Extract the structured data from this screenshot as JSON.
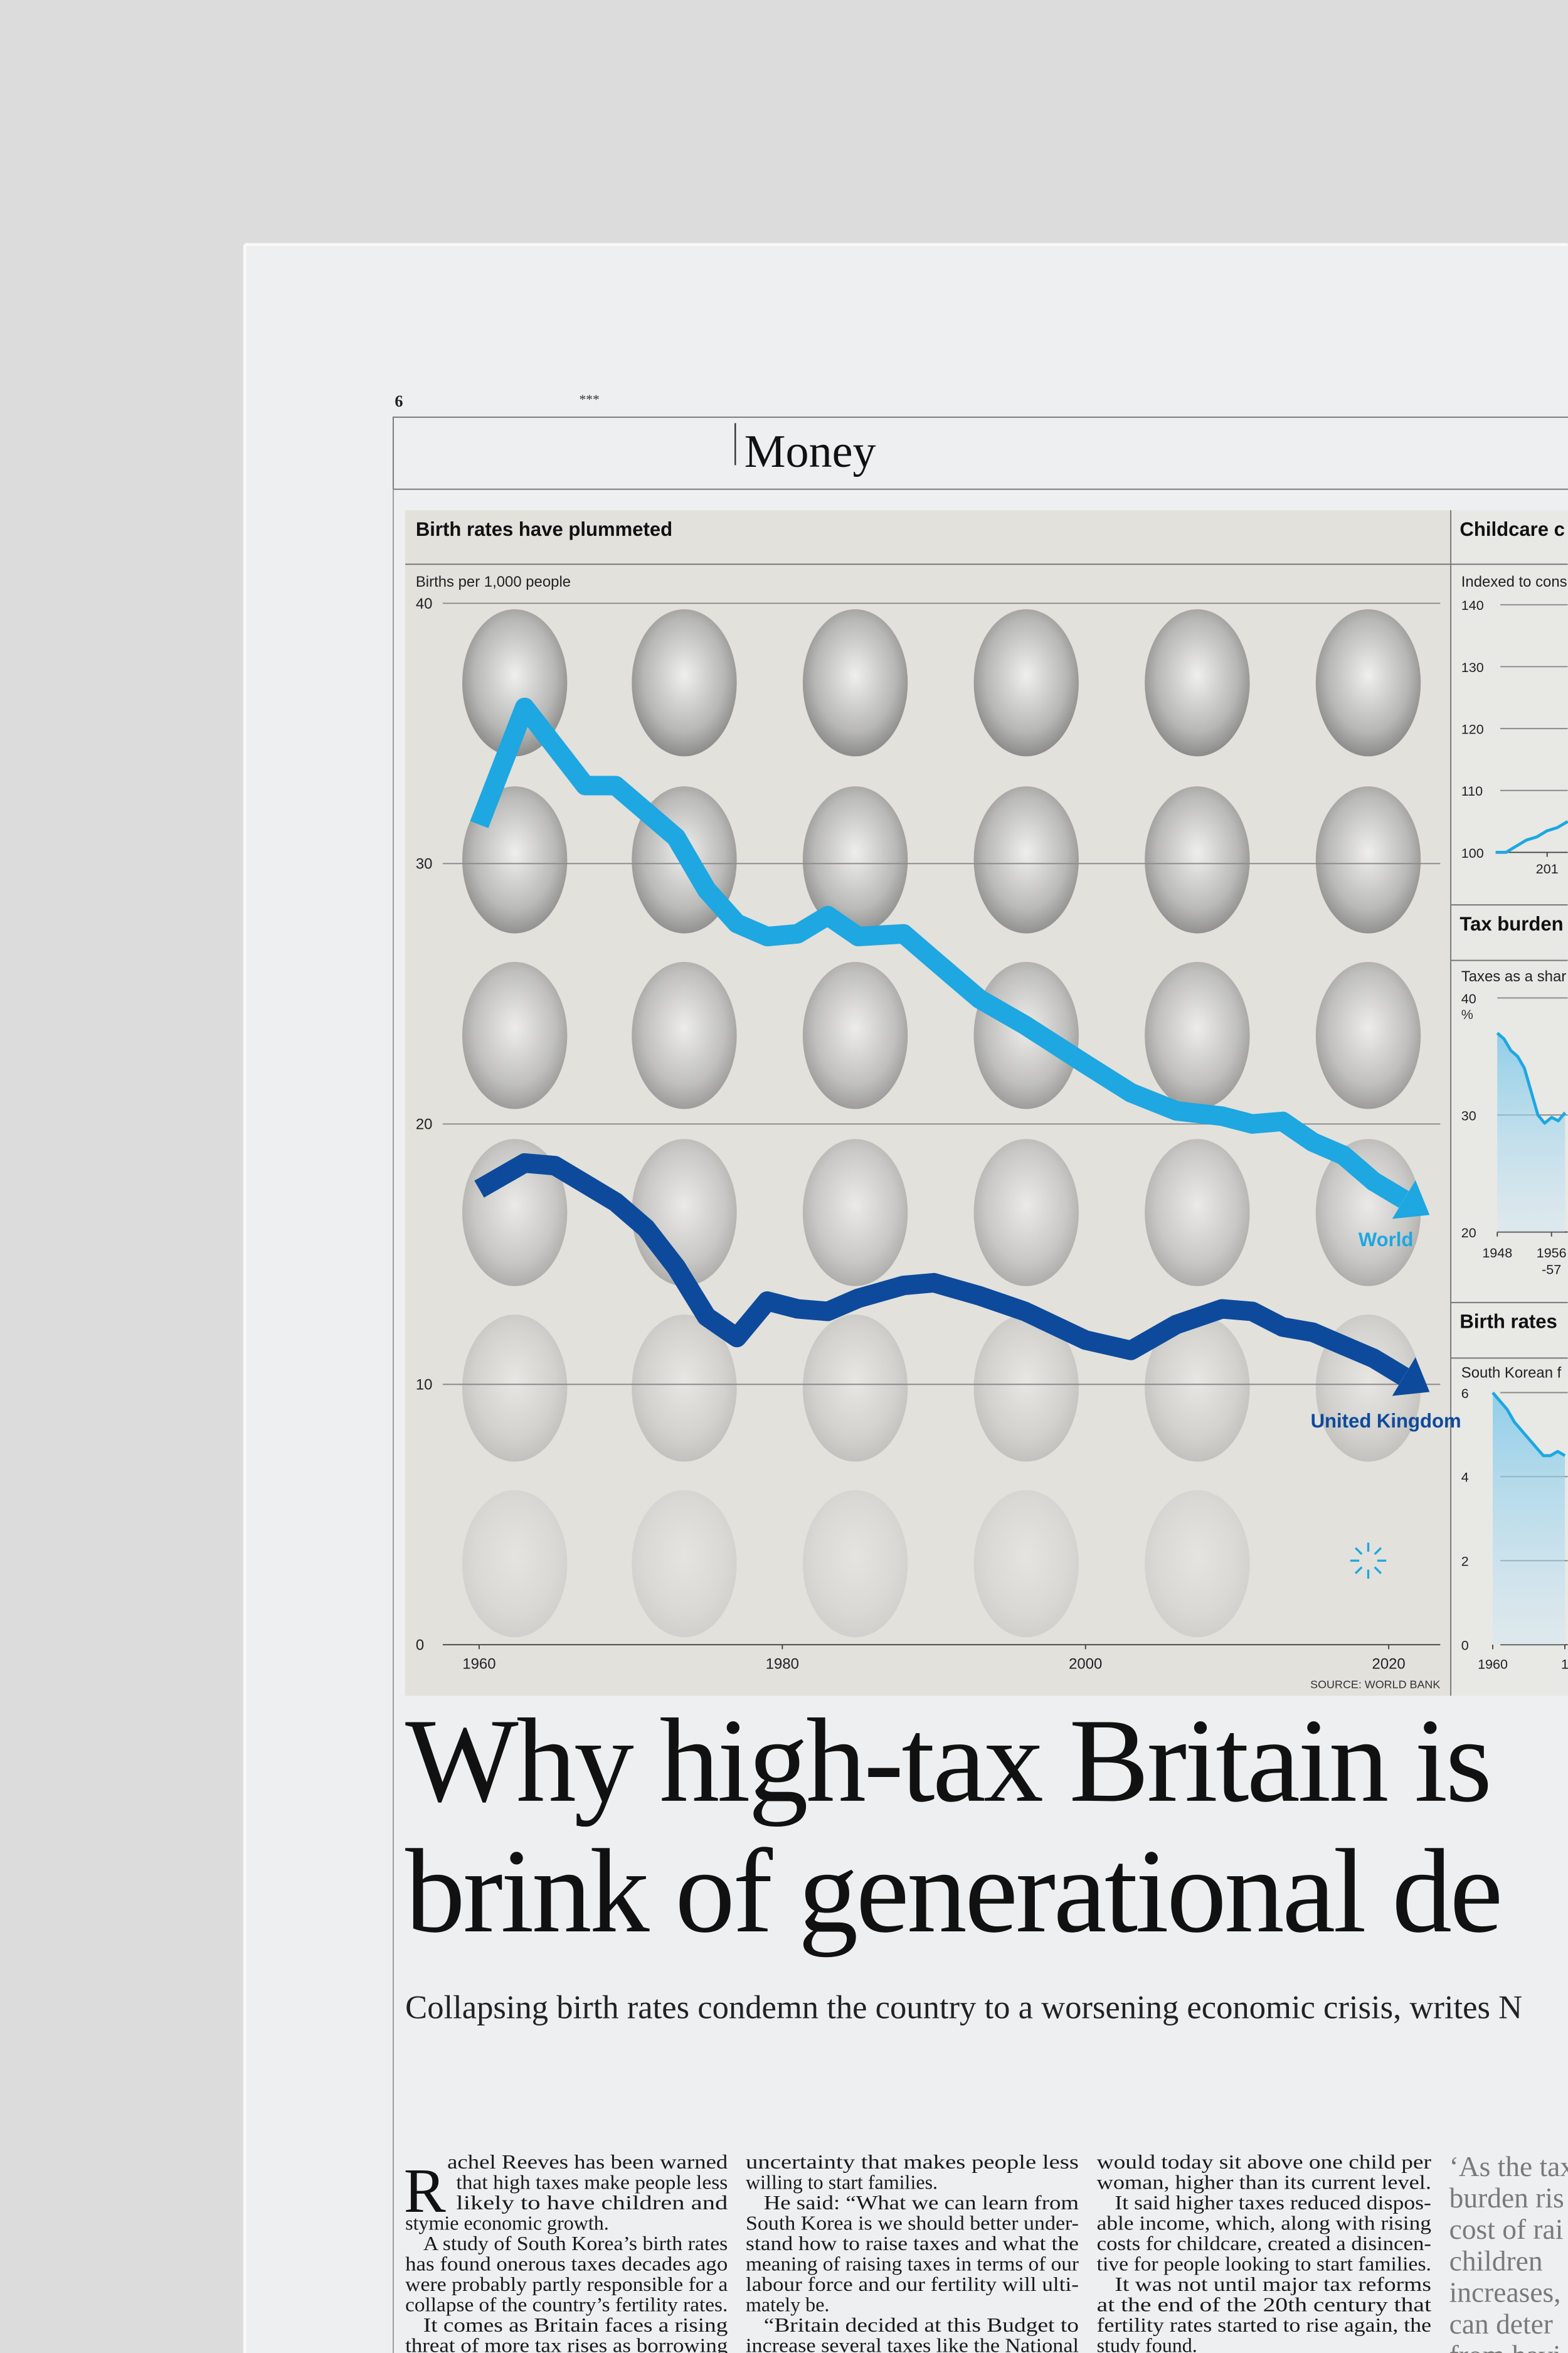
{
  "page": {
    "number": "6",
    "stars": "***",
    "section": "Money"
  },
  "chart_data": [
    {
      "type": "line",
      "title": "Birth rates have plummeted",
      "y_label": "Births per 1,000 people",
      "x": [
        1960,
        1963,
        1965,
        1967,
        1969,
        1971,
        1973,
        1975,
        1977,
        1979,
        1981,
        1983,
        1985,
        1988,
        1990,
        1993,
        1996,
        2000,
        2003,
        2006,
        2009,
        2011,
        2013,
        2015,
        2017,
        2019,
        2021
      ],
      "series": [
        {
          "name": "World",
          "color": "#1ea7e1",
          "values": [
            31.5,
            36,
            34.5,
            33,
            33,
            32,
            31,
            29,
            27.7,
            27.2,
            27.3,
            28,
            27.2,
            27.3,
            26.3,
            24.8,
            23.8,
            22.3,
            21.2,
            20.5,
            20.3,
            20,
            20.1,
            19.3,
            18.8,
            17.8,
            17.1
          ]
        },
        {
          "name": "United Kingdom",
          "color": "#0d4a9c",
          "values": [
            17.5,
            18.5,
            18.4,
            17.7,
            17,
            16,
            14.5,
            12.6,
            11.8,
            13.2,
            12.9,
            12.8,
            13.3,
            13.8,
            13.9,
            13.4,
            12.8,
            11.7,
            11.3,
            12.3,
            12.9,
            12.8,
            12.2,
            12,
            11.5,
            11,
            10.3
          ]
        }
      ],
      "xlim": [
        1957.6,
        2023.4
      ],
      "xticks": [
        1960,
        1980,
        2000,
        2020
      ],
      "ylim": [
        0,
        40
      ],
      "yticks": [
        0,
        10,
        20,
        30,
        40
      ],
      "grid": true,
      "arrows": true,
      "source": "SOURCE: WORLD BANK"
    },
    {
      "type": "line",
      "title": "Childcare c",
      "y_label": "Indexed to cons",
      "x": [
        2008.5,
        2009,
        2009.5,
        2010,
        2010.5,
        2011,
        2011.5,
        2012
      ],
      "series": [
        {
          "color": "#1ea7e1",
          "values": [
            100,
            100,
            101,
            102,
            102.5,
            103.5,
            104,
            105
          ]
        }
      ],
      "xlim": [
        2008,
        2012
      ],
      "xticks": [
        {
          "value": 2011,
          "label": "201"
        }
      ],
      "ylim": [
        100,
        140
      ],
      "yticks": [
        100,
        110,
        120,
        130,
        140
      ],
      "grid": true
    },
    {
      "type": "area",
      "title": "Tax burden",
      "y_label": "Taxes as a shar",
      "unit": "%",
      "x": [
        1948,
        1949,
        1950,
        1951,
        1952,
        1953,
        1954,
        1955,
        1956,
        1957,
        1958
      ],
      "series": [
        {
          "color": "#1ea7e1",
          "values": [
            37,
            36.5,
            35.5,
            35,
            34,
            32,
            30,
            29.3,
            29.8,
            29.5,
            30.2
          ]
        }
      ],
      "xlim": [
        1946,
        1958.4
      ],
      "xticks": [
        1948,
        1956
      ],
      "x_tick_note": "-57",
      "ylim": [
        20,
        40
      ],
      "yticks": [
        20,
        30,
        40
      ],
      "grid": true
    },
    {
      "type": "area",
      "title": "Birth rates",
      "y_label": "South Korean f",
      "x": [
        1960,
        1961,
        1962,
        1963,
        1964,
        1965,
        1966,
        1967,
        1968,
        1969,
        1970
      ],
      "series": [
        {
          "color": "#1ea7e1",
          "values": [
            6,
            5.8,
            5.6,
            5.3,
            5.1,
            4.9,
            4.7,
            4.5,
            4.5,
            4.6,
            4.5
          ]
        }
      ],
      "xlim": [
        1960,
        1970.4
      ],
      "xticks": [
        1960,
        {
          "value": 1970,
          "label": "1"
        }
      ],
      "ylim": [
        0,
        6
      ],
      "yticks": [
        0,
        2,
        4,
        6
      ],
      "grid": true
    }
  ],
  "article": {
    "headline": [
      "Why high-tax Britain is",
      "brink of generational de"
    ],
    "standfirst": "Collapsing birth rates condemn the country to a worsening economic crisis, writes N",
    "drop_cap": "R",
    "columns": [
      [
        "achel Reeves has been warned",
        "that high taxes make people less",
        "likely to have children and",
        "stymie economic growth.",
        "A study of South Korea’s birth rates",
        "has found onerous taxes decades ago",
        "were probably partly responsible for a",
        "collapse of the country’s fertility rates.",
        "It comes as Britain faces a rising",
        "threat of more tax rises as borrowing"
      ],
      [
        "uncertainty that makes people less",
        "willing to start families.",
        "He said: “What we can learn from",
        "South Korea is we should better under-",
        "stand how to raise taxes and what the",
        "meaning of raising taxes in terms of our",
        "labour force and our fertility will ulti-",
        "mately be.",
        "“Britain decided at this Budget to",
        "increase several taxes like the National"
      ],
      [
        "would today sit above one child per",
        "woman, higher than its current level.",
        "It said higher taxes reduced dispos-",
        "able income, which, along with rising",
        "costs for childcare, created a disincen-",
        "tive for people looking to start families.",
        "It was not until major tax reforms",
        "at the end of the 20th century that",
        "fertility rates started to rise again, the",
        "study found."
      ]
    ],
    "pull_quote": [
      "‘As the tax",
      "burden ris",
      "cost of rai",
      "children",
      "increases,",
      "can deter",
      "from havi"
    ]
  }
}
